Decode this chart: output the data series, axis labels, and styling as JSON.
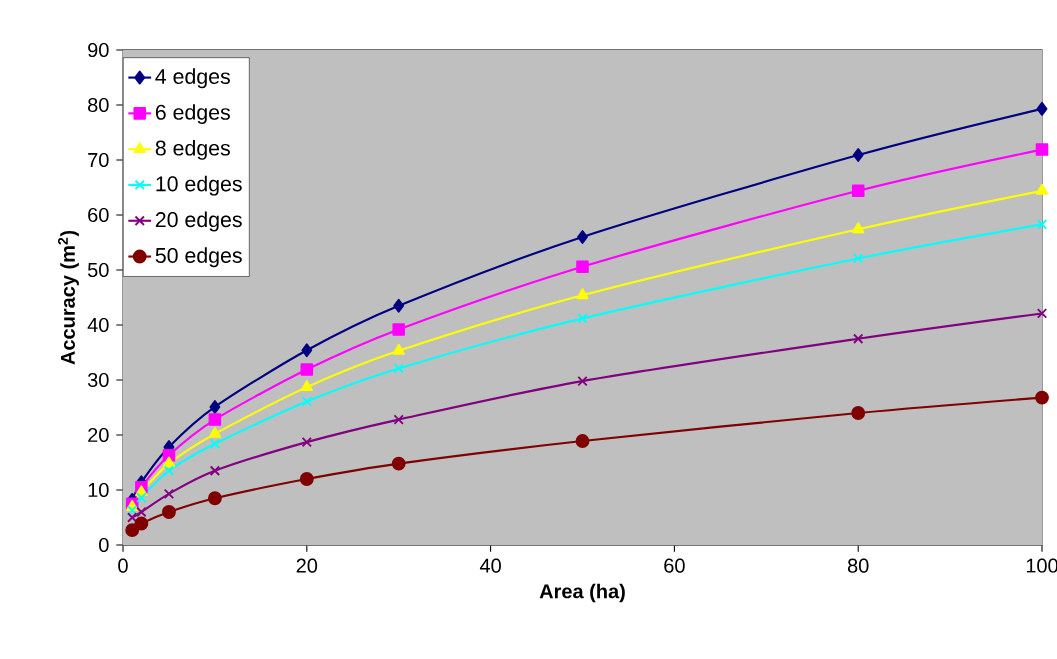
{
  "chart_data": {
    "type": "line",
    "xlabel": "Area (ha)",
    "ylabel": "Accuracy (m$^{2}$)",
    "x": [
      1,
      2,
      5,
      10,
      20,
      30,
      50,
      80,
      100
    ],
    "series": [
      {
        "name": "4 edges",
        "color": "#000080",
        "marker": "diamond",
        "values": [
          8.2,
          11.4,
          17.8,
          25.1,
          35.4,
          43.5,
          56.0,
          70.9,
          79.3
        ]
      },
      {
        "name": "6 edges",
        "color": "#ff00ff",
        "marker": "square",
        "values": [
          7.5,
          10.5,
          16.3,
          22.8,
          31.9,
          39.2,
          50.6,
          64.4,
          71.9
        ]
      },
      {
        "name": "8 edges",
        "color": "#ffff00",
        "marker": "triangle",
        "values": [
          6.9,
          9.6,
          14.8,
          20.2,
          28.7,
          35.3,
          45.4,
          57.4,
          64.4
        ]
      },
      {
        "name": "10 edges",
        "color": "#00ffff",
        "marker": "cross",
        "values": [
          6.3,
          8.6,
          13.5,
          18.4,
          26.1,
          32.1,
          41.2,
          52.1,
          58.3
        ]
      },
      {
        "name": "20 edges",
        "color": "#800080",
        "marker": "cross",
        "values": [
          5.0,
          6.0,
          9.3,
          13.5,
          18.7,
          22.8,
          29.8,
          37.5,
          42.1
        ]
      },
      {
        "name": "50 edges",
        "color": "#800000",
        "marker": "circle",
        "values": [
          2.7,
          3.9,
          6.0,
          8.5,
          12.0,
          14.8,
          18.9,
          24.0,
          26.8
        ]
      }
    ],
    "xlim": [
      0,
      100
    ],
    "xticks": [
      0,
      20,
      40,
      60,
      80,
      100
    ],
    "ylim": [
      0,
      90
    ],
    "yticks": [
      0,
      10,
      20,
      30,
      40,
      50,
      60,
      70,
      80,
      90
    ],
    "grid": "y",
    "legend": "top left",
    "line_style": "solid"
  }
}
